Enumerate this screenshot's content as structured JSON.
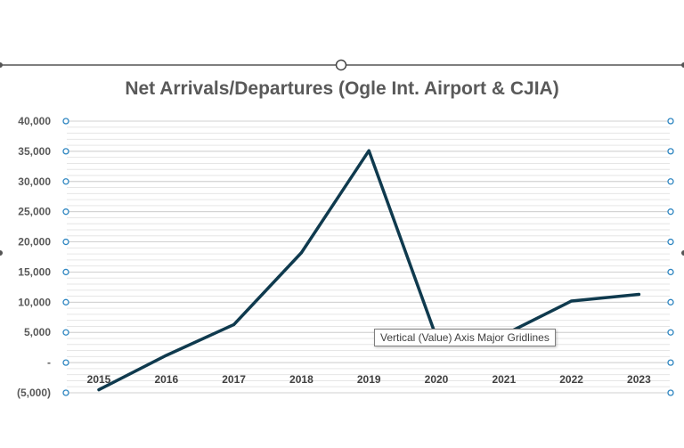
{
  "chart_data": {
    "type": "line",
    "title": "Net Arrivals/Departures (Ogle Int. Airport & CJIA)",
    "xlabel": "",
    "ylabel": "",
    "categories": [
      "2015",
      "2016",
      "2017",
      "2018",
      "2019",
      "2020",
      "2021",
      "2022",
      "2023"
    ],
    "series": [
      {
        "values": [
          -4500,
          1200,
          6300,
          18200,
          35100,
          4200,
          4600,
          10200,
          11300
        ]
      }
    ],
    "ylim": [
      -5000,
      40000
    ],
    "y_tick_labels": [
      "(5,000)",
      "-",
      "5,000",
      "10,000",
      "15,000",
      "20,000",
      "25,000",
      "30,000",
      "35,000",
      "40,000"
    ],
    "grid": true,
    "line_color": "#0f3a4e"
  },
  "tooltip": {
    "text": "Vertical (Value) Axis Major Gridlines"
  }
}
